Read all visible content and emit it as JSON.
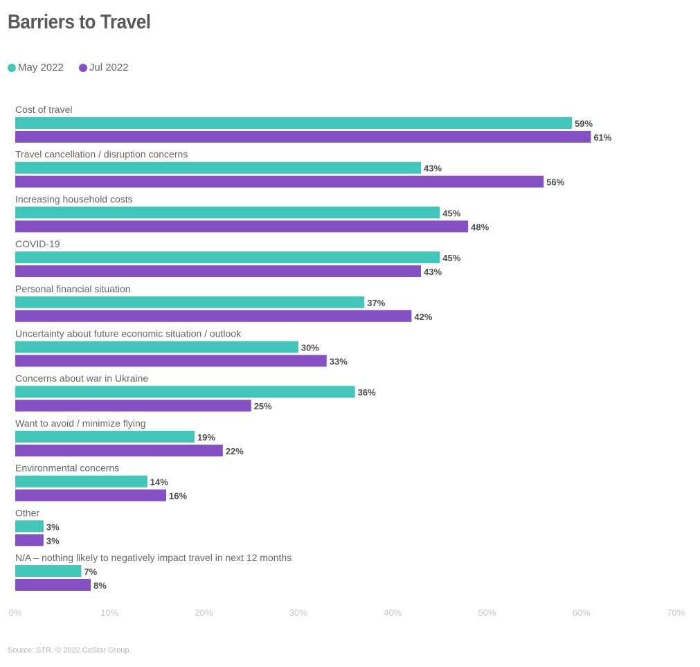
{
  "chart_data": {
    "type": "bar",
    "orientation": "horizontal",
    "title": "Barriers to Travel",
    "categories": [
      "Cost of travel",
      "Travel cancellation / disruption concerns",
      "Increasing household costs",
      "COVID-19",
      "Personal financial situation",
      "Uncertainty about future economic situation / outlook",
      "Concerns about war in Ukraine",
      "Want to avoid / minimize flying",
      "Environmental concerns",
      "Other",
      "N/A – nothing likely to negatively impact travel in next 12 months"
    ],
    "series": [
      {
        "name": "May 2022",
        "color": "#41c6b9",
        "values": [
          59,
          43,
          45,
          45,
          37,
          30,
          36,
          19,
          14,
          3,
          7
        ]
      },
      {
        "name": "Jul 2022",
        "color": "#8650c5",
        "values": [
          61,
          56,
          48,
          43,
          42,
          33,
          25,
          22,
          16,
          3,
          8
        ]
      }
    ],
    "xlabel": "",
    "ylabel": "",
    "xlim": [
      0,
      70
    ],
    "xticks": [
      0,
      10,
      20,
      30,
      40,
      50,
      60,
      70
    ],
    "tick_format": "{v}%",
    "value_format": "{v}%",
    "grid": false,
    "legend": "top-left"
  },
  "title": "Barriers to Travel",
  "legend": [
    {
      "label": "May 2022",
      "color": "#41c6b9"
    },
    {
      "label": "Jul 2022",
      "color": "#8650c5"
    }
  ],
  "source": "Source: STR. © 2022 CoStar Group"
}
